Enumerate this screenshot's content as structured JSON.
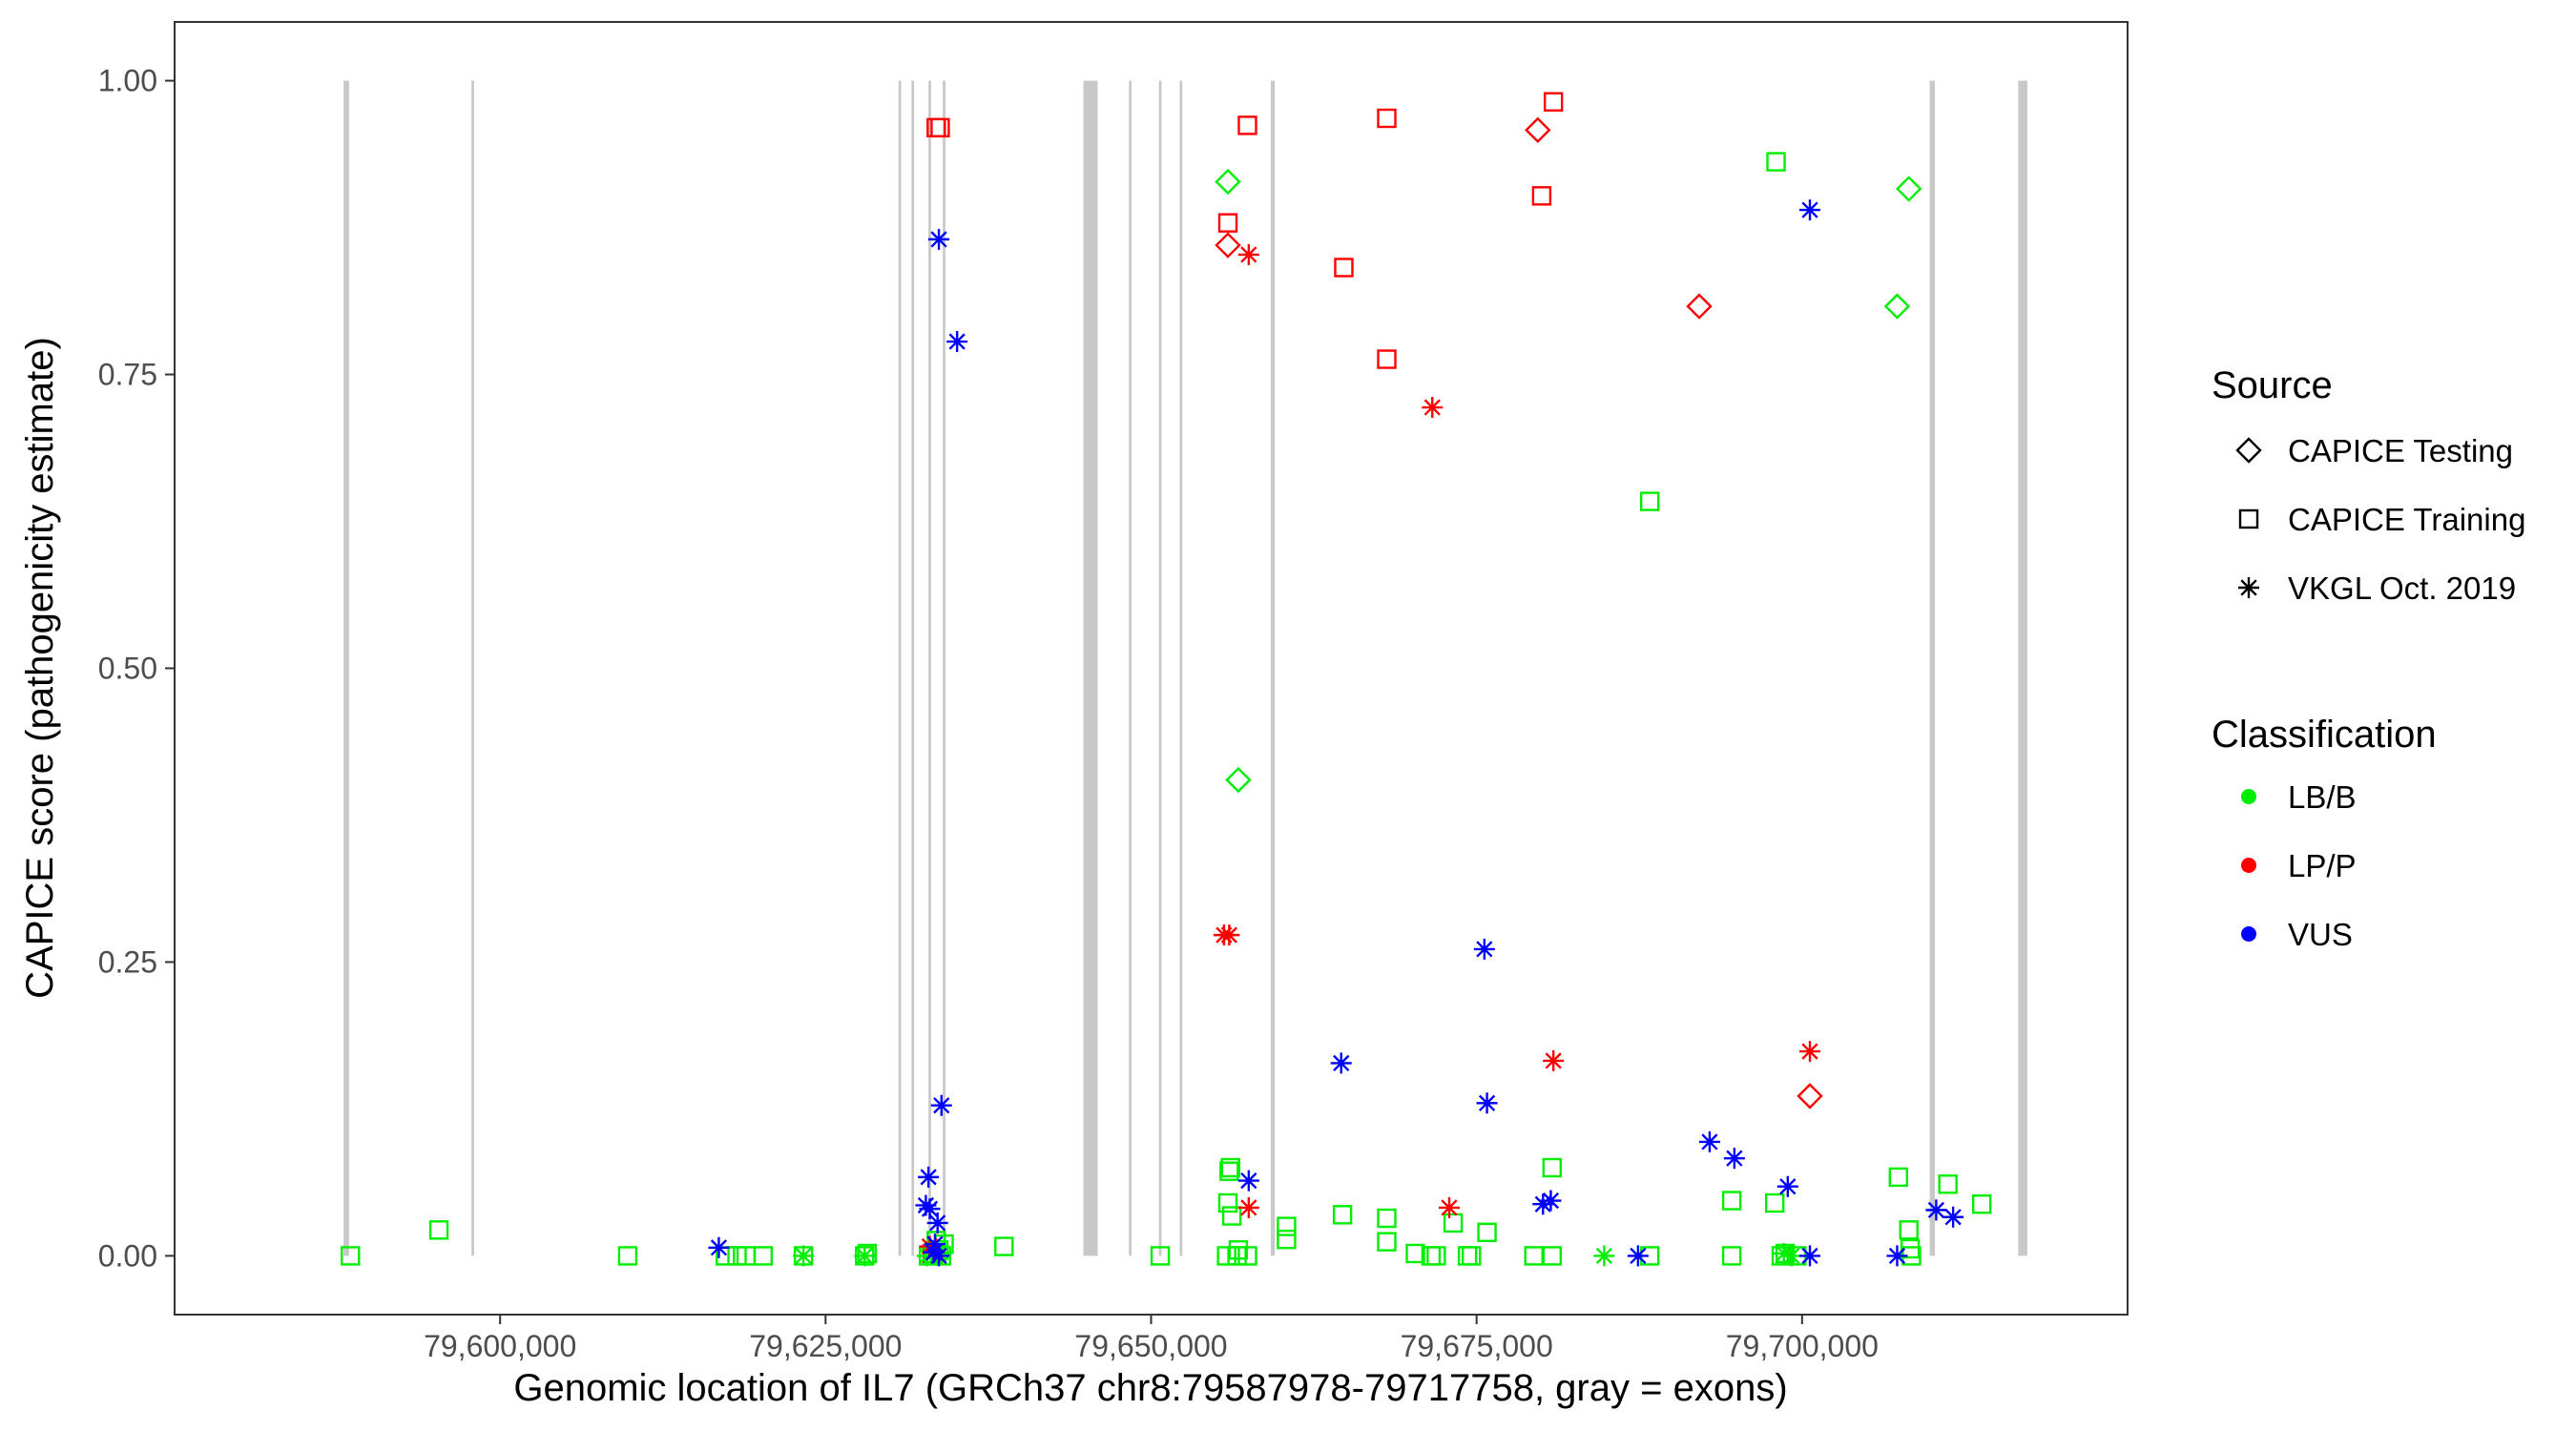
{
  "chart_data": {
    "type": "scatter",
    "xlabel": "Genomic location of IL7 (GRCh37 chr8:79587978-79717758, gray = exons)",
    "ylabel": "CAPICE score (pathogenicity estimate)",
    "xlim": [
      79575000,
      79725000
    ],
    "ylim": [
      -0.05,
      1.05
    ],
    "xticks": [
      79600000,
      79625000,
      79650000,
      79675000,
      79700000
    ],
    "xtick_labels": [
      "79,600,000",
      "79,625,000",
      "79,650,000",
      "79,675,000",
      "79,700,000"
    ],
    "yticks": [
      0,
      0.25,
      0.5,
      0.75,
      1.0
    ],
    "ytick_labels": [
      "0.00",
      "0.25",
      "0.50",
      "0.75",
      "1.00"
    ],
    "grid": false,
    "exons": [
      {
        "start": 79587978,
        "end": 79588400
      },
      {
        "start": 79597800,
        "end": 79598000
      },
      {
        "start": 79630600,
        "end": 79630800
      },
      {
        "start": 79631600,
        "end": 79631800
      },
      {
        "start": 79632900,
        "end": 79633100
      },
      {
        "start": 79634000,
        "end": 79634200
      },
      {
        "start": 79644800,
        "end": 79645900
      },
      {
        "start": 79648300,
        "end": 79648500
      },
      {
        "start": 79650600,
        "end": 79650800
      },
      {
        "start": 79652200,
        "end": 79652400
      },
      {
        "start": 79659200,
        "end": 79659500
      },
      {
        "start": 79709800,
        "end": 79710200
      },
      {
        "start": 79716600,
        "end": 79717300
      }
    ],
    "legend": {
      "position": "right",
      "source_title": "Source",
      "source_entries": [
        {
          "label": "CAPICE Testing",
          "shape": "diamond"
        },
        {
          "label": "CAPICE Training",
          "shape": "square"
        },
        {
          "label": "VKGL Oct. 2019",
          "shape": "star"
        }
      ],
      "class_title": "Classification",
      "class_entries": [
        {
          "label": "LB/B",
          "color": "#00ee00"
        },
        {
          "label": "LP/P",
          "color": "#ff0000"
        },
        {
          "label": "VUS",
          "color": "#0000ff"
        }
      ]
    },
    "colors": {
      "LB/B": "#00ee00",
      "LP/P": "#ff0000",
      "VUS": "#0000ff",
      "exon": "#c8c8c8"
    },
    "series": [
      {
        "name": "CAPICE Testing / LB/B",
        "shape": "diamond",
        "class": "LB/B",
        "points": [
          [
            79655900,
            0.914
          ],
          [
            79656700,
            0.405
          ],
          [
            79708200,
            0.908
          ],
          [
            79707300,
            0.808
          ]
        ]
      },
      {
        "name": "CAPICE Testing / LP/P",
        "shape": "diamond",
        "class": "LP/P",
        "points": [
          [
            79655900,
            0.86
          ],
          [
            79679700,
            0.958
          ],
          [
            79692100,
            0.808
          ],
          [
            79700600,
            0.136
          ]
        ]
      },
      {
        "name": "CAPICE Training / LP/P",
        "shape": "square",
        "class": "LP/P",
        "points": [
          [
            79633500,
            0.96
          ],
          [
            79633800,
            0.96
          ],
          [
            79657400,
            0.962
          ],
          [
            79668100,
            0.968
          ],
          [
            79680900,
            0.982
          ],
          [
            79655900,
            0.879
          ],
          [
            79664800,
            0.841
          ],
          [
            79680000,
            0.902
          ],
          [
            79668100,
            0.763
          ],
          [
            79633200,
            0.002
          ]
        ]
      },
      {
        "name": "CAPICE Training / LB/B",
        "shape": "square",
        "class": "LB/B",
        "points": [
          [
            79588500,
            0.0
          ],
          [
            79595300,
            0.022
          ],
          [
            79609800,
            0.0
          ],
          [
            79617300,
            0.0
          ],
          [
            79618200,
            0.0
          ],
          [
            79618900,
            0.0
          ],
          [
            79620200,
            0.0
          ],
          [
            79623300,
            0.0
          ],
          [
            79628000,
            0.0
          ],
          [
            79628200,
            0.002
          ],
          [
            79632900,
            0.0
          ],
          [
            79633300,
            0.002
          ],
          [
            79633700,
            0.005
          ],
          [
            79634100,
            0.01
          ],
          [
            79633500,
            0.013
          ],
          [
            79633900,
            0.0
          ],
          [
            79638700,
            0.008
          ],
          [
            79650700,
            0.0
          ],
          [
            79655800,
            0.0
          ],
          [
            79656600,
            0.0
          ],
          [
            79657400,
            0.0
          ],
          [
            79656700,
            0.005
          ],
          [
            79656100,
            0.075
          ],
          [
            79656000,
            0.072
          ],
          [
            79656200,
            0.034
          ],
          [
            79655900,
            0.045
          ],
          [
            79660400,
            0.025
          ],
          [
            79660400,
            0.014
          ],
          [
            79664700,
            0.035
          ],
          [
            79668100,
            0.032
          ],
          [
            79668100,
            0.012
          ],
          [
            79670300,
            0.002
          ],
          [
            79671500,
            0.0
          ],
          [
            79671900,
            0.0
          ],
          [
            79673200,
            0.028
          ],
          [
            79674300,
            0.0
          ],
          [
            79674600,
            0.0
          ],
          [
            79675800,
            0.02
          ],
          [
            79679400,
            0.0
          ],
          [
            79680800,
            0.0
          ],
          [
            79680800,
            0.075
          ],
          [
            79688300,
            0.0
          ],
          [
            79688300,
            0.642
          ],
          [
            79694600,
            0.0
          ],
          [
            79694600,
            0.047
          ],
          [
            79697900,
            0.045
          ],
          [
            79698000,
            0.931
          ],
          [
            79698400,
            0.0
          ],
          [
            79698700,
            0.002
          ],
          [
            79699600,
            0.0
          ],
          [
            79707400,
            0.067
          ],
          [
            79708200,
            0.022
          ],
          [
            79708300,
            0.006
          ],
          [
            79708400,
            0.0
          ],
          [
            79711200,
            0.061
          ],
          [
            79713800,
            0.044
          ]
        ]
      },
      {
        "name": "VKGL Oct. 2019 / LB/B",
        "shape": "star",
        "class": "LB/B",
        "points": [
          [
            79623300,
            0.0
          ],
          [
            79628000,
            0.0
          ],
          [
            79684800,
            0.0
          ],
          [
            79698600,
            0.002
          ],
          [
            79699200,
            0.0
          ],
          [
            79633700,
            0.002
          ],
          [
            79632800,
            0.0
          ]
        ]
      },
      {
        "name": "VKGL Oct. 2019 / LP/P",
        "shape": "star",
        "class": "LP/P",
        "points": [
          [
            79656000,
            0.273
          ],
          [
            79655600,
            0.273
          ],
          [
            79657500,
            0.852
          ],
          [
            79671600,
            0.722
          ],
          [
            79680900,
            0.166
          ],
          [
            79700600,
            0.174
          ],
          [
            79657500,
            0.041
          ],
          [
            79672900,
            0.041
          ],
          [
            79633000,
            0.008
          ],
          [
            79633400,
            0.004
          ]
        ]
      },
      {
        "name": "VKGL Oct. 2019 / VUS",
        "shape": "star",
        "class": "VUS",
        "points": [
          [
            79633700,
            0.865
          ],
          [
            79635100,
            0.778
          ],
          [
            79700600,
            0.89
          ],
          [
            79633900,
            0.128
          ],
          [
            79664600,
            0.164
          ],
          [
            79675600,
            0.261
          ],
          [
            79675800,
            0.13
          ],
          [
            79616800,
            0.007
          ],
          [
            79632900,
            0.067
          ],
          [
            79632700,
            0.043
          ],
          [
            79633000,
            0.04
          ],
          [
            79633600,
            0.028
          ],
          [
            79633400,
            0.01
          ],
          [
            79633700,
            0.0
          ],
          [
            79633300,
            0.003
          ],
          [
            79657500,
            0.064
          ],
          [
            79680100,
            0.044
          ],
          [
            79680700,
            0.047
          ],
          [
            79687400,
            0.0
          ],
          [
            79692900,
            0.097
          ],
          [
            79694800,
            0.083
          ],
          [
            79698900,
            0.059
          ],
          [
            79700600,
            0.0
          ],
          [
            79707300,
            0.0
          ],
          [
            79710300,
            0.039
          ],
          [
            79711600,
            0.033
          ]
        ]
      }
    ]
  }
}
